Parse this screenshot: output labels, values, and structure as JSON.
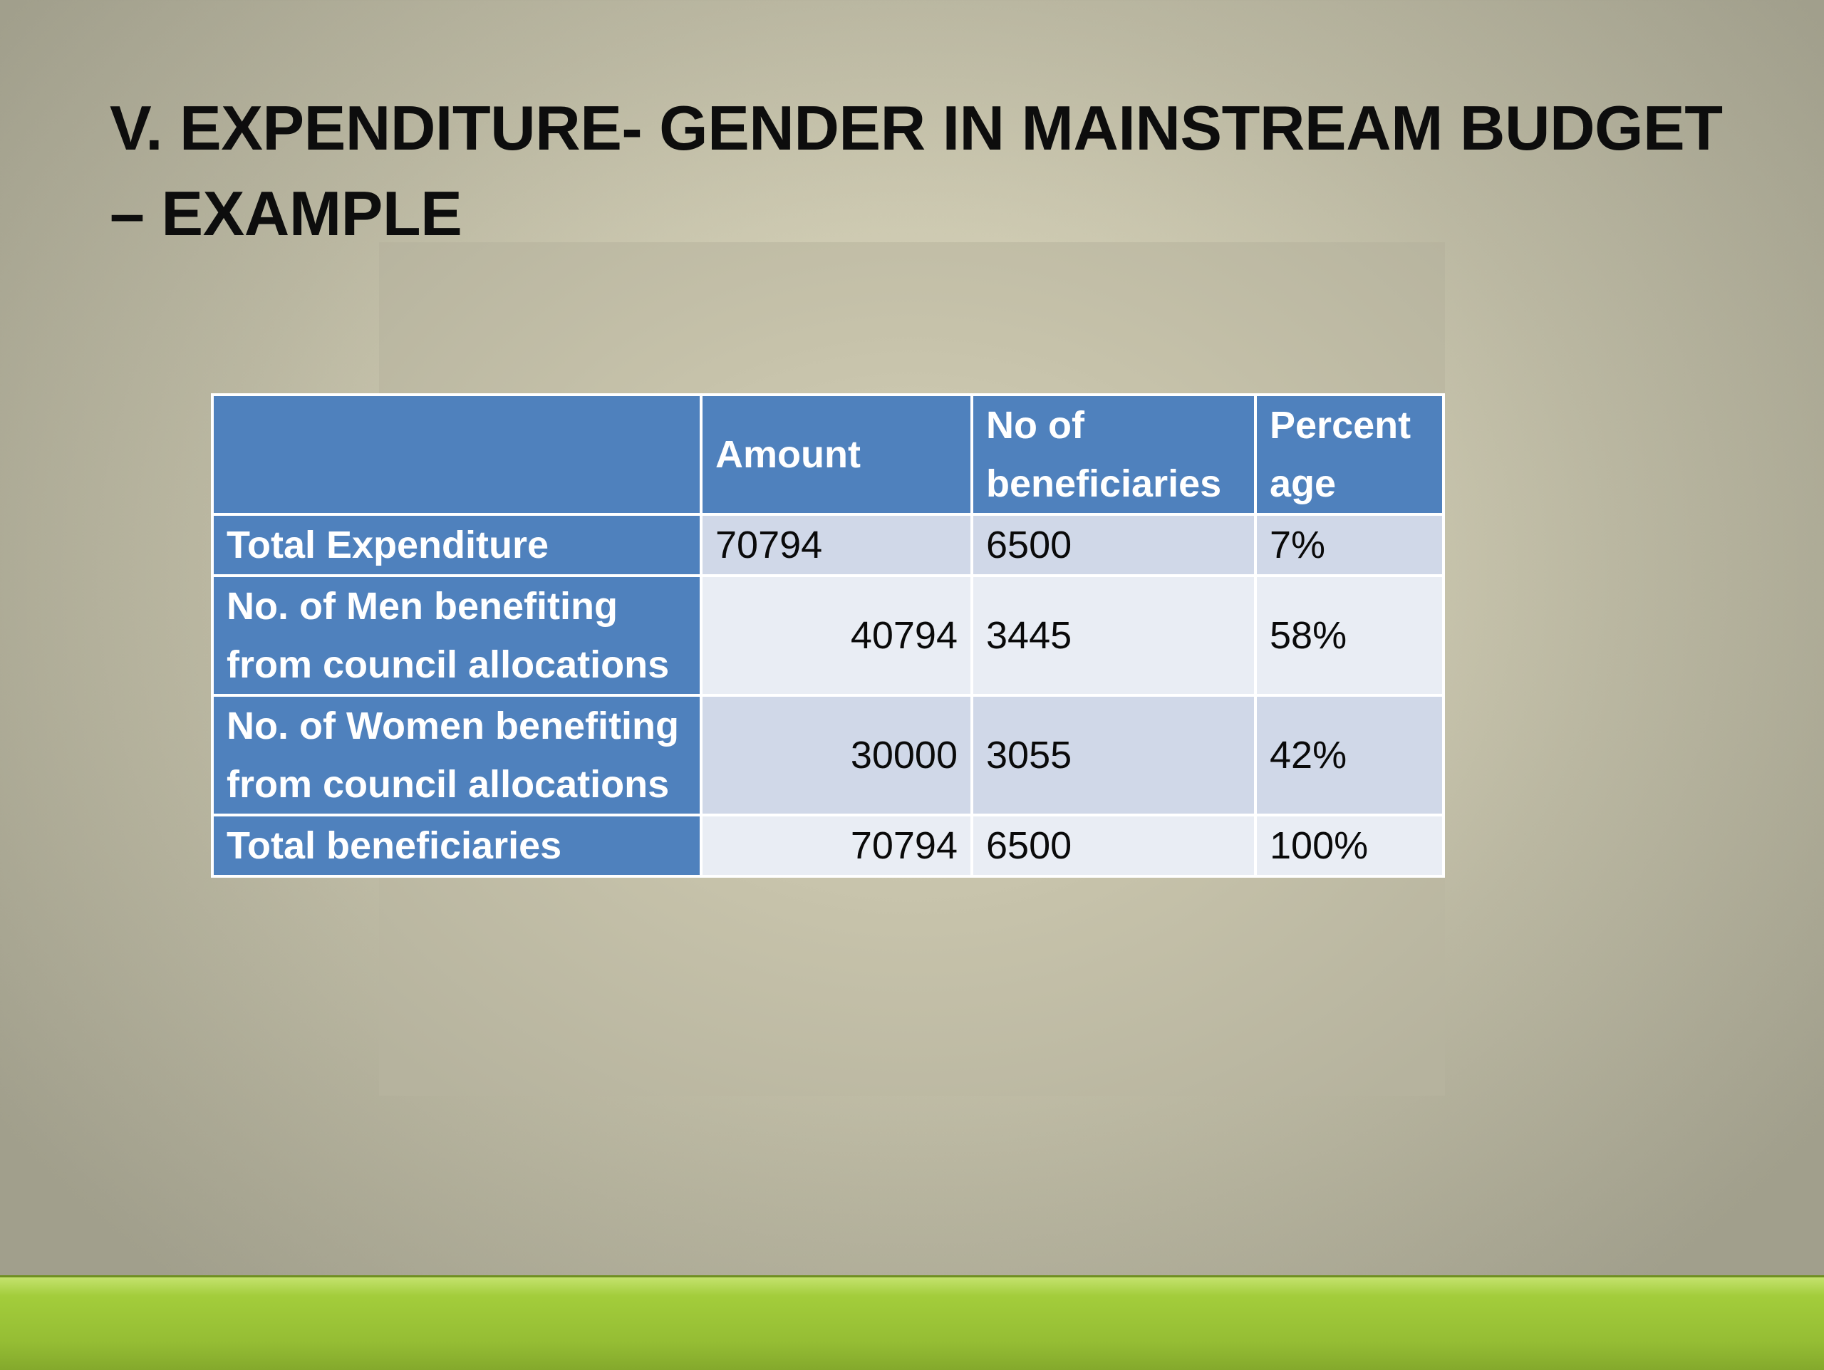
{
  "slide": {
    "title": "V. EXPENDITURE- GENDER IN MAINSTREAM BUDGET – EXAMPLE"
  },
  "table": {
    "headers": [
      "",
      "Amount",
      "No of beneficiaries",
      "Percent age"
    ],
    "rows": [
      {
        "label": "Total Expenditure",
        "amount": "70794",
        "beneficiaries": "6500",
        "percentage": "7%"
      },
      {
        "label": "No. of Men benefiting from council allocations",
        "amount": "40794",
        "beneficiaries": "3445",
        "percentage": "58%"
      },
      {
        "label": "No. of Women benefiting from council allocations",
        "amount": "30000",
        "beneficiaries": "3055",
        "percentage": "42%"
      },
      {
        "label": "Total beneficiaries",
        "amount": "70794",
        "beneficiaries": "6500",
        "percentage": "100%"
      }
    ]
  },
  "colors": {
    "header_blue": "#4f81bd",
    "band_dark": "#d0d8e8",
    "band_light": "#e9edf4",
    "accent_green": "#9bc53d"
  }
}
